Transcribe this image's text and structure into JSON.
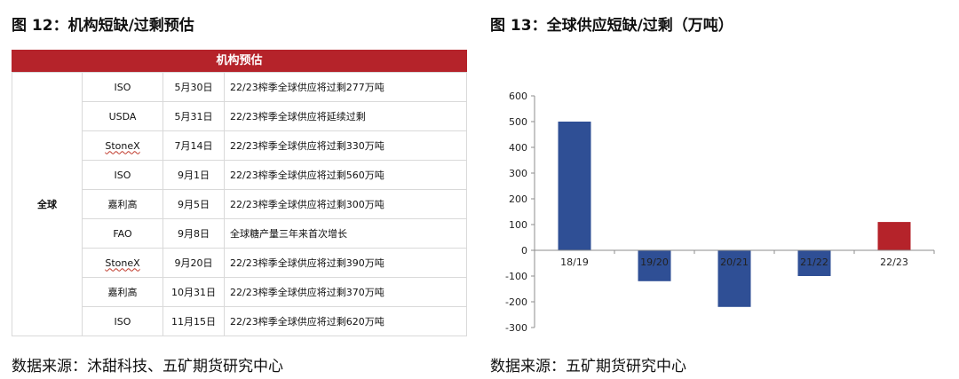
{
  "left_panel": {
    "title": "图 12：机构短缺/过剩预估",
    "table_header": "机构预估",
    "region": "全球",
    "rows": [
      {
        "org": "ISO",
        "date": "5月30日",
        "note": "22/23榨季全球供应将过剩277万吨",
        "flag": false
      },
      {
        "org": "USDA",
        "date": "5月31日",
        "note": "22/23榨季全球供应将延续过剩",
        "flag": false
      },
      {
        "org": "StoneX",
        "date": "7月14日",
        "note": "22/23榨季全球供应将过剩330万吨",
        "flag": true
      },
      {
        "org": "ISO",
        "date": "9月1日",
        "note": "22/23榨季全球供应将过剩560万吨",
        "flag": false
      },
      {
        "org": "嘉利高",
        "date": "9月5日",
        "note": "22/23榨季全球供应将过剩300万吨",
        "flag": false
      },
      {
        "org": "FAO",
        "date": "9月8日",
        "note": "全球糖产量三年来首次增长",
        "flag": false
      },
      {
        "org": "StoneX",
        "date": "9月20日",
        "note": "22/23榨季全球供应将过剩390万吨",
        "flag": true
      },
      {
        "org": "嘉利高",
        "date": "10月31日",
        "note": "22/23榨季全球供应将过剩370万吨",
        "flag": false
      },
      {
        "org": "ISO",
        "date": "11月15日",
        "note": "22/23榨季全球供应将过剩620万吨",
        "flag": false
      }
    ],
    "source": "数据来源：沐甜科技、五矿期货研究中心"
  },
  "right_panel": {
    "title": "图 13：全球供应短缺/过剩（万吨）",
    "source": "数据来源：五矿期货研究中心"
  },
  "chart_data": {
    "type": "bar",
    "categories": [
      "18/19",
      "19/20",
      "20/21",
      "21/22",
      "22/23"
    ],
    "values": [
      500,
      -120,
      -220,
      -100,
      110
    ],
    "bar_colors": [
      "#2f4f95",
      "#2f4f95",
      "#2f4f95",
      "#2f4f95",
      "#b5232a"
    ],
    "ylim": [
      -300,
      600
    ],
    "yticks": [
      -300,
      -200,
      -100,
      0,
      100,
      200,
      300,
      400,
      500,
      600
    ],
    "grid": false,
    "legend": "none"
  }
}
